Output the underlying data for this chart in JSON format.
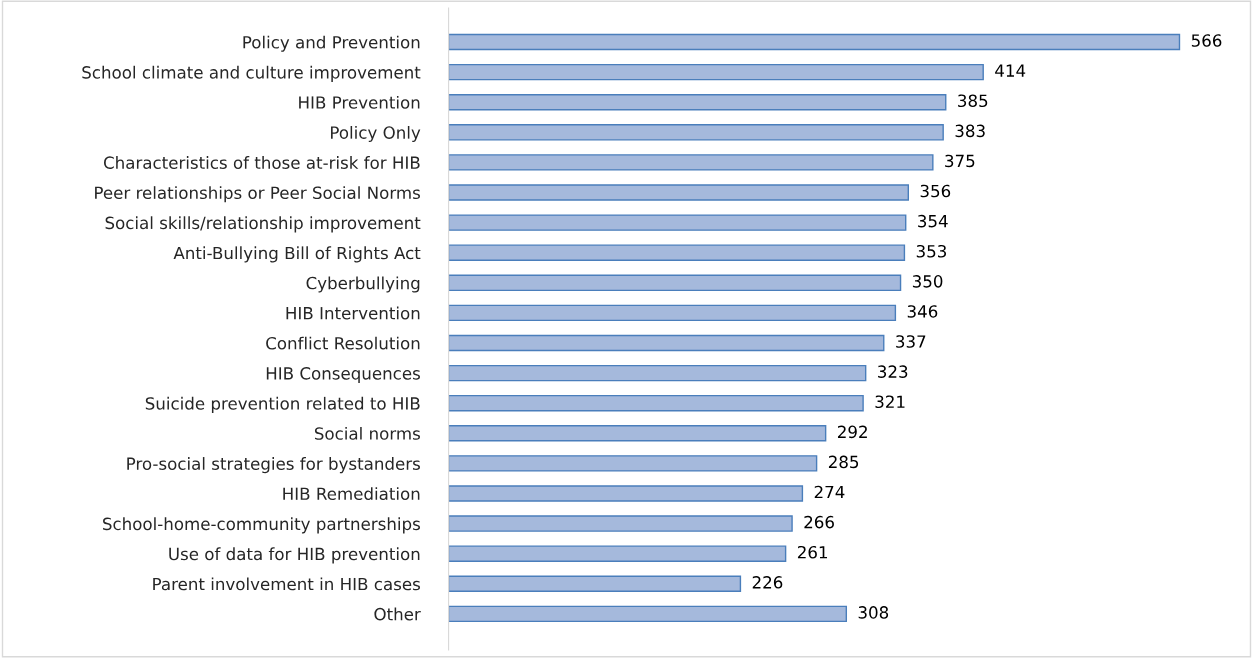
{
  "chart_data": {
    "type": "bar",
    "orientation": "horizontal",
    "categories": [
      "Policy and Prevention",
      "School climate and culture improvement",
      "HIB Prevention",
      "Policy Only",
      "Characteristics of those at-risk for HIB",
      "Peer relationships or Peer Social Norms",
      "Social skills/relationship improvement",
      "Anti-Bullying Bill of Rights Act",
      "Cyberbullying",
      "HIB Intervention",
      "Conflict Resolution",
      "HIB Consequences",
      "Suicide prevention related to HIB",
      "Social norms",
      "Pro-social strategies for bystanders",
      "HIB Remediation",
      "School-home-community partnerships",
      "Use of data for HIB prevention",
      "Parent involvement in HIB cases",
      "Other"
    ],
    "values": [
      566,
      414,
      385,
      383,
      375,
      356,
      354,
      353,
      350,
      346,
      337,
      323,
      321,
      292,
      285,
      274,
      266,
      261,
      226,
      308
    ],
    "color": "#a5b9dc",
    "data_labels": true,
    "grid": false,
    "legend": false
  }
}
